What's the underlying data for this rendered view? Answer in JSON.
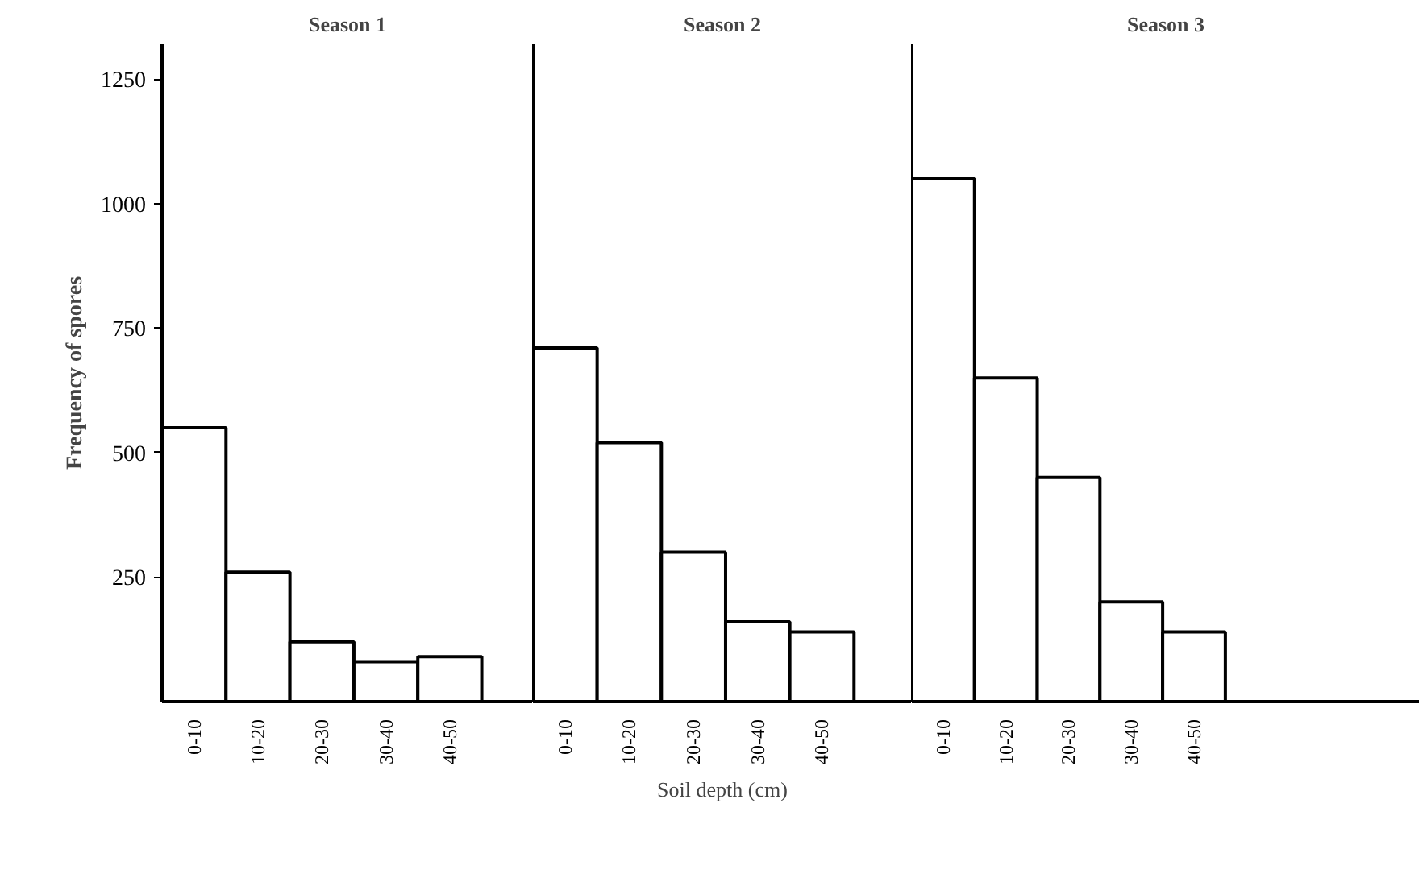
{
  "chart_data": [
    {
      "type": "bar",
      "title": "Season 1",
      "ylabel": "Frequency of spores",
      "categories": [
        "0-10",
        "10-20",
        "20-30",
        "30-40",
        "40-50"
      ],
      "values": [
        550,
        260,
        120,
        80,
        90
      ],
      "color": "#ffffff",
      "ylim": [
        0,
        1320
      ],
      "yticks": [
        250,
        500,
        750,
        1000,
        1250
      ],
      "grid": false
    },
    {
      "type": "bar",
      "title": "Season 2",
      "xlabel": "Soil depth (cm)",
      "categories": [
        "0-10",
        "10-20",
        "20-30",
        "30-40",
        "40-50"
      ],
      "values": [
        710,
        520,
        300,
        160,
        140
      ],
      "color": "#ffffff",
      "ylim": [
        0,
        1320
      ],
      "tick_labels": "x",
      "grid": false
    },
    {
      "type": "bar",
      "title": "Season 3",
      "categories": [
        "0-10",
        "10-20",
        "20-30",
        "30-40",
        "40-50"
      ],
      "values": [
        1050,
        650,
        450,
        200,
        140
      ],
      "color": "#ffffff",
      "ylim": [
        0,
        1320
      ],
      "tick_labels": "x",
      "grid": false
    }
  ]
}
